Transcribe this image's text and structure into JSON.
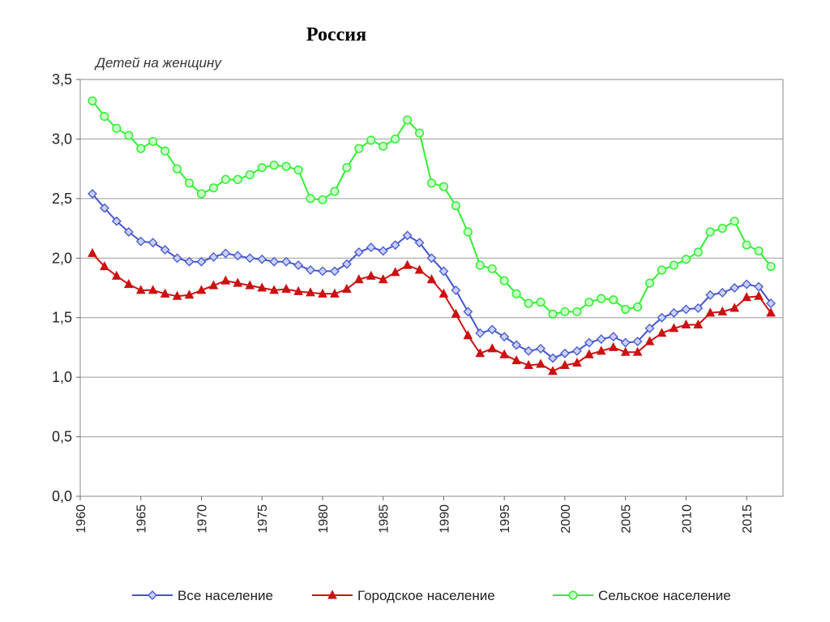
{
  "page": {
    "title": "Россия"
  },
  "chart_data": {
    "type": "line",
    "title": "Россия",
    "ylabel": "Детей на женщину",
    "xlabel": "",
    "ylim": [
      0,
      3.5
    ],
    "xlim": [
      1960,
      2018
    ],
    "grid": true,
    "legend_position": "bottom",
    "y_ticks": [
      "0,0",
      "0,5",
      "1,0",
      "1,5",
      "2,0",
      "2,5",
      "3,0",
      "3,5"
    ],
    "x_ticks": [
      "1960",
      "1965",
      "1970",
      "1975",
      "1980",
      "1985",
      "1990",
      "1995",
      "2000",
      "2005",
      "2010",
      "2015"
    ],
    "x": [
      1961,
      1962,
      1963,
      1964,
      1965,
      1966,
      1967,
      1968,
      1969,
      1970,
      1971,
      1972,
      1973,
      1974,
      1975,
      1976,
      1977,
      1978,
      1979,
      1980,
      1981,
      1982,
      1983,
      1984,
      1985,
      1986,
      1987,
      1988,
      1989,
      1990,
      1991,
      1992,
      1993,
      1994,
      1995,
      1996,
      1997,
      1998,
      1999,
      2000,
      2001,
      2002,
      2003,
      2004,
      2005,
      2006,
      2007,
      2008,
      2009,
      2010,
      2011,
      2012,
      2013,
      2014,
      2015,
      2016,
      2017
    ],
    "series": [
      {
        "name": "Все население",
        "color": "#4455cc",
        "marker": "diamond",
        "values": [
          2.54,
          2.42,
          2.31,
          2.22,
          2.14,
          2.13,
          2.07,
          2.0,
          1.97,
          1.97,
          2.01,
          2.04,
          2.02,
          2.0,
          1.99,
          1.97,
          1.97,
          1.94,
          1.9,
          1.89,
          1.89,
          1.95,
          2.05,
          2.09,
          2.06,
          2.11,
          2.19,
          2.13,
          2.0,
          1.89,
          1.73,
          1.55,
          1.37,
          1.4,
          1.34,
          1.27,
          1.22,
          1.24,
          1.16,
          1.2,
          1.22,
          1.29,
          1.32,
          1.34,
          1.29,
          1.3,
          1.41,
          1.5,
          1.54,
          1.57,
          1.58,
          1.69,
          1.71,
          1.75,
          1.78,
          1.76,
          1.62
        ]
      },
      {
        "name": "Городское население",
        "color": "#cc1111",
        "marker": "triangle",
        "values": [
          2.04,
          1.93,
          1.85,
          1.78,
          1.73,
          1.73,
          1.7,
          1.68,
          1.69,
          1.73,
          1.77,
          1.81,
          1.79,
          1.77,
          1.75,
          1.73,
          1.74,
          1.72,
          1.71,
          1.7,
          1.7,
          1.74,
          1.82,
          1.85,
          1.82,
          1.88,
          1.94,
          1.9,
          1.82,
          1.7,
          1.53,
          1.35,
          1.2,
          1.24,
          1.19,
          1.14,
          1.1,
          1.11,
          1.05,
          1.1,
          1.12,
          1.19,
          1.22,
          1.25,
          1.21,
          1.21,
          1.3,
          1.37,
          1.41,
          1.44,
          1.44,
          1.54,
          1.55,
          1.58,
          1.67,
          1.68,
          1.54
        ]
      },
      {
        "name": "Сельское население",
        "color": "#33ee33",
        "marker": "circle",
        "values": [
          3.32,
          3.19,
          3.09,
          3.03,
          2.92,
          2.98,
          2.9,
          2.75,
          2.63,
          2.54,
          2.59,
          2.66,
          2.66,
          2.7,
          2.76,
          2.78,
          2.77,
          2.74,
          2.5,
          2.49,
          2.56,
          2.76,
          2.92,
          2.99,
          2.94,
          3.0,
          3.16,
          3.05,
          2.63,
          2.6,
          2.44,
          2.22,
          1.94,
          1.91,
          1.81,
          1.7,
          1.62,
          1.63,
          1.53,
          1.55,
          1.55,
          1.63,
          1.66,
          1.65,
          1.57,
          1.59,
          1.79,
          1.9,
          1.94,
          1.99,
          2.05,
          2.22,
          2.25,
          2.31,
          2.11,
          2.06,
          1.93
        ]
      }
    ]
  }
}
